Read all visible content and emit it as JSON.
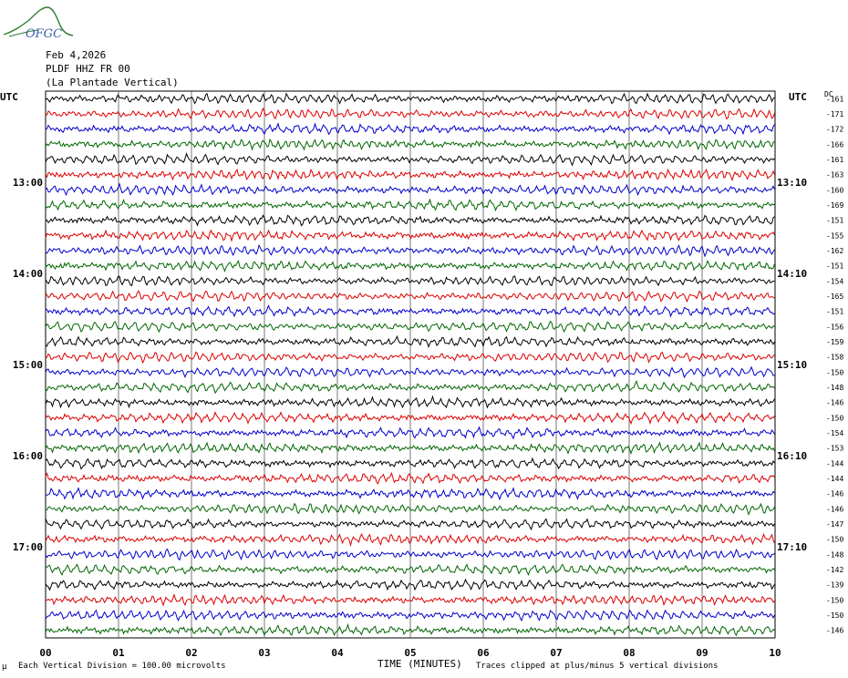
{
  "logo": {
    "text": "OFGC"
  },
  "header": {
    "date": "Feb 4,2026",
    "station": "PLDF HHZ FR 00",
    "location": "(La Plantade Vertical)"
  },
  "utc_label_left": "UTC",
  "utc_label_right": "UTC",
  "dc_label": "DC",
  "footer": {
    "scale_note": "Each Vertical Division =  100.00 microvolts",
    "scale_mark": "μ",
    "clip_note": "Traces clipped at plus/minus 5 vertical divisions"
  },
  "chart_data": {
    "type": "line",
    "title": "",
    "xlabel": "TIME (MINUTES)",
    "ylabel": "",
    "x_ticks": [
      "00",
      "01",
      "02",
      "03",
      "04",
      "05",
      "06",
      "07",
      "08",
      "09",
      "10"
    ],
    "xlim": [
      0,
      10
    ],
    "grid": true,
    "trace_colors": [
      "#000000",
      "#dd0000",
      "#0000cc",
      "#006600"
    ],
    "left_hour_labels": [
      {
        "row": 6,
        "label": "13:00"
      },
      {
        "row": 12,
        "label": "14:00"
      },
      {
        "row": 18,
        "label": "15:00"
      },
      {
        "row": 24,
        "label": "16:00"
      },
      {
        "row": 30,
        "label": "17:00"
      }
    ],
    "right_time_labels": [
      {
        "row": 6,
        "label": "13:10"
      },
      {
        "row": 12,
        "label": "14:10"
      },
      {
        "row": 18,
        "label": "15:10"
      },
      {
        "row": 24,
        "label": "16:10"
      },
      {
        "row": 30,
        "label": "17:10"
      }
    ],
    "dc_offsets": [
      -161,
      -171,
      -172,
      -166,
      -161,
      -163,
      -160,
      -169,
      -151,
      -155,
      -162,
      -151,
      -154,
      -165,
      -151,
      -156,
      -159,
      -158,
      -150,
      -148,
      -146,
      -150,
      -154,
      -153,
      -144,
      -144,
      -146,
      -146,
      -147,
      -150,
      -148,
      -142,
      -139,
      -150,
      -150,
      -146
    ]
  }
}
